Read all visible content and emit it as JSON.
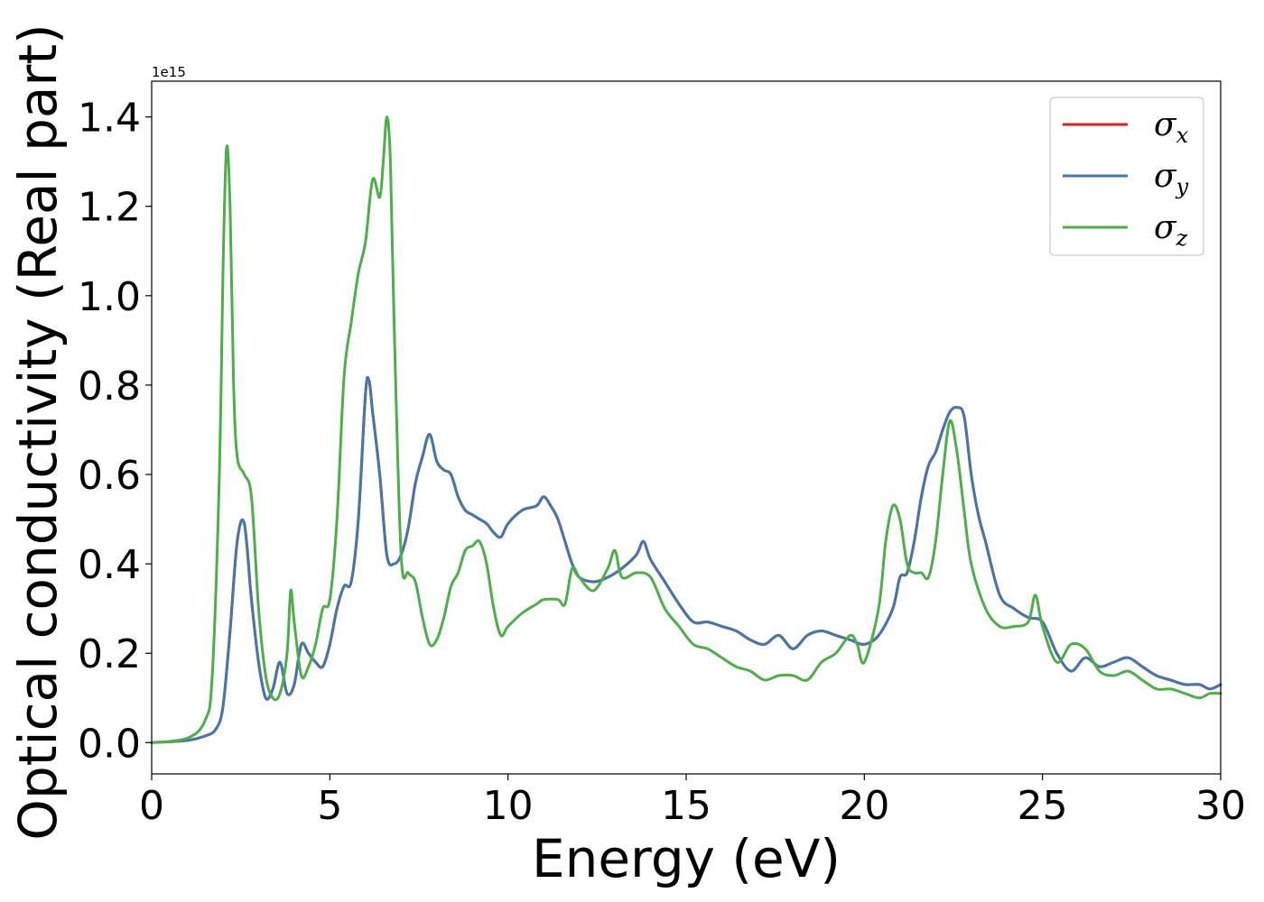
{
  "chart_data": {
    "type": "line",
    "title": "",
    "xlabel": "Energy (eV)",
    "ylabel": "Optical conductivity (Real part)",
    "y_offset_label": "1e15",
    "xlim": [
      0,
      30
    ],
    "ylim": [
      -0.07,
      1.48
    ],
    "xticks": [
      0,
      5,
      10,
      15,
      20,
      25,
      30
    ],
    "xtick_labels": [
      "0",
      "5",
      "10",
      "15",
      "20",
      "25",
      "30"
    ],
    "yticks": [
      0.0,
      0.2,
      0.4,
      0.6,
      0.8,
      1.0,
      1.2,
      1.4
    ],
    "ytick_labels": [
      "0.0",
      "0.2",
      "0.4",
      "0.6",
      "0.8",
      "1.0",
      "1.2",
      "1.4"
    ],
    "grid": false,
    "legend_position": "top-right",
    "series": [
      {
        "name": "σx",
        "legend_base": "σ",
        "legend_sub": "x",
        "color": "#e41a1c",
        "x": [
          0,
          1,
          1.5,
          1.8,
          2.0,
          2.2,
          2.4,
          2.6,
          2.8,
          3.0,
          3.2,
          3.4,
          3.6,
          3.8,
          4.0,
          4.2,
          4.4,
          4.6,
          4.8,
          5.0,
          5.2,
          5.4,
          5.6,
          5.8,
          6.0,
          6.1,
          6.2,
          6.4,
          6.6,
          6.8,
          7.0,
          7.2,
          7.4,
          7.6,
          7.8,
          8.0,
          8.2,
          8.4,
          8.6,
          8.8,
          9.0,
          9.2,
          9.4,
          9.6,
          9.8,
          10.0,
          10.4,
          10.8,
          11.0,
          11.2,
          11.4,
          11.6,
          11.8,
          12.0,
          12.4,
          12.8,
          13.2,
          13.6,
          13.8,
          14.0,
          14.4,
          14.8,
          15.2,
          15.6,
          16.0,
          16.4,
          16.8,
          17.2,
          17.6,
          18.0,
          18.4,
          18.8,
          19.2,
          19.6,
          20.0,
          20.4,
          20.8,
          21.0,
          21.2,
          21.4,
          21.6,
          21.8,
          22.0,
          22.2,
          22.4,
          22.6,
          22.8,
          23.0,
          23.2,
          23.4,
          23.8,
          24.2,
          24.6,
          25.0,
          25.4,
          25.8,
          26.2,
          26.6,
          27.0,
          27.4,
          27.8,
          28.2,
          28.6,
          29.0,
          29.4,
          29.7,
          30
        ],
        "y": [
          0.0,
          0.005,
          0.015,
          0.03,
          0.08,
          0.25,
          0.45,
          0.49,
          0.32,
          0.18,
          0.1,
          0.12,
          0.18,
          0.11,
          0.13,
          0.22,
          0.2,
          0.18,
          0.17,
          0.22,
          0.3,
          0.35,
          0.36,
          0.5,
          0.78,
          0.81,
          0.74,
          0.6,
          0.42,
          0.4,
          0.42,
          0.48,
          0.58,
          0.64,
          0.69,
          0.63,
          0.61,
          0.6,
          0.55,
          0.52,
          0.51,
          0.5,
          0.49,
          0.47,
          0.46,
          0.49,
          0.52,
          0.53,
          0.55,
          0.53,
          0.5,
          0.45,
          0.4,
          0.37,
          0.36,
          0.37,
          0.39,
          0.42,
          0.45,
          0.41,
          0.36,
          0.31,
          0.27,
          0.27,
          0.26,
          0.25,
          0.23,
          0.22,
          0.24,
          0.21,
          0.24,
          0.25,
          0.24,
          0.23,
          0.22,
          0.24,
          0.3,
          0.37,
          0.38,
          0.45,
          0.55,
          0.62,
          0.65,
          0.7,
          0.74,
          0.75,
          0.73,
          0.6,
          0.51,
          0.45,
          0.33,
          0.3,
          0.28,
          0.27,
          0.2,
          0.16,
          0.19,
          0.17,
          0.18,
          0.19,
          0.17,
          0.15,
          0.14,
          0.13,
          0.13,
          0.12,
          0.13
        ]
      },
      {
        "name": "σy",
        "legend_base": "σ",
        "legend_sub": "y",
        "color": "#4477aa",
        "x": [
          0,
          1,
          1.5,
          1.8,
          2.0,
          2.2,
          2.4,
          2.6,
          2.8,
          3.0,
          3.2,
          3.4,
          3.6,
          3.8,
          4.0,
          4.2,
          4.4,
          4.6,
          4.8,
          5.0,
          5.2,
          5.4,
          5.6,
          5.8,
          6.0,
          6.1,
          6.2,
          6.4,
          6.6,
          6.8,
          7.0,
          7.2,
          7.4,
          7.6,
          7.8,
          8.0,
          8.2,
          8.4,
          8.6,
          8.8,
          9.0,
          9.2,
          9.4,
          9.6,
          9.8,
          10.0,
          10.4,
          10.8,
          11.0,
          11.2,
          11.4,
          11.6,
          11.8,
          12.0,
          12.4,
          12.8,
          13.2,
          13.6,
          13.8,
          14.0,
          14.4,
          14.8,
          15.2,
          15.6,
          16.0,
          16.4,
          16.8,
          17.2,
          17.6,
          18.0,
          18.4,
          18.8,
          19.2,
          19.6,
          20.0,
          20.4,
          20.8,
          21.0,
          21.2,
          21.4,
          21.6,
          21.8,
          22.0,
          22.2,
          22.4,
          22.6,
          22.8,
          23.0,
          23.2,
          23.4,
          23.8,
          24.2,
          24.6,
          25.0,
          25.4,
          25.8,
          26.2,
          26.6,
          27.0,
          27.4,
          27.8,
          28.2,
          28.6,
          29.0,
          29.4,
          29.7,
          30
        ],
        "y": [
          0.0,
          0.005,
          0.015,
          0.03,
          0.08,
          0.25,
          0.45,
          0.49,
          0.32,
          0.18,
          0.1,
          0.12,
          0.18,
          0.11,
          0.13,
          0.22,
          0.2,
          0.18,
          0.17,
          0.22,
          0.3,
          0.35,
          0.36,
          0.5,
          0.78,
          0.81,
          0.74,
          0.6,
          0.42,
          0.4,
          0.42,
          0.48,
          0.58,
          0.64,
          0.69,
          0.63,
          0.61,
          0.6,
          0.55,
          0.52,
          0.51,
          0.5,
          0.49,
          0.47,
          0.46,
          0.49,
          0.52,
          0.53,
          0.55,
          0.53,
          0.5,
          0.45,
          0.4,
          0.37,
          0.36,
          0.37,
          0.39,
          0.42,
          0.45,
          0.41,
          0.36,
          0.31,
          0.27,
          0.27,
          0.26,
          0.25,
          0.23,
          0.22,
          0.24,
          0.21,
          0.24,
          0.25,
          0.24,
          0.23,
          0.22,
          0.24,
          0.3,
          0.37,
          0.38,
          0.45,
          0.55,
          0.62,
          0.65,
          0.7,
          0.74,
          0.75,
          0.73,
          0.6,
          0.51,
          0.45,
          0.33,
          0.3,
          0.28,
          0.27,
          0.2,
          0.16,
          0.19,
          0.17,
          0.18,
          0.19,
          0.17,
          0.15,
          0.14,
          0.13,
          0.13,
          0.12,
          0.13
        ]
      },
      {
        "name": "σz",
        "legend_base": "σ",
        "legend_sub": "z",
        "color": "#4daf4a",
        "x": [
          0,
          1,
          1.5,
          1.7,
          1.9,
          2.0,
          2.1,
          2.2,
          2.3,
          2.4,
          2.6,
          2.8,
          3.0,
          3.2,
          3.4,
          3.6,
          3.8,
          3.9,
          4.0,
          4.2,
          4.4,
          4.6,
          4.8,
          5.0,
          5.2,
          5.4,
          5.6,
          5.8,
          6.0,
          6.2,
          6.4,
          6.5,
          6.6,
          6.7,
          6.8,
          7.0,
          7.2,
          7.4,
          7.6,
          7.8,
          8.0,
          8.2,
          8.4,
          8.6,
          8.8,
          9.0,
          9.2,
          9.4,
          9.6,
          9.8,
          10.0,
          10.4,
          10.8,
          11.0,
          11.4,
          11.6,
          11.8,
          12.0,
          12.4,
          12.8,
          13.0,
          13.2,
          13.6,
          14.0,
          14.4,
          14.8,
          15.2,
          15.6,
          16.0,
          16.4,
          16.8,
          17.2,
          17.6,
          18.0,
          18.4,
          18.8,
          19.2,
          19.6,
          19.8,
          20.0,
          20.4,
          20.6,
          20.8,
          21.0,
          21.2,
          21.4,
          21.6,
          21.8,
          22.0,
          22.2,
          22.4,
          22.6,
          22.8,
          23.0,
          23.4,
          23.8,
          24.2,
          24.6,
          24.8,
          25.0,
          25.4,
          25.8,
          26.2,
          26.6,
          27.0,
          27.4,
          27.8,
          28.2,
          28.6,
          29.0,
          29.4,
          29.7,
          30
        ],
        "y": [
          0.0,
          0.01,
          0.05,
          0.15,
          0.6,
          1.05,
          1.33,
          1.2,
          0.8,
          0.64,
          0.6,
          0.55,
          0.3,
          0.15,
          0.1,
          0.11,
          0.2,
          0.34,
          0.27,
          0.15,
          0.17,
          0.22,
          0.3,
          0.32,
          0.5,
          0.82,
          0.94,
          1.05,
          1.12,
          1.26,
          1.22,
          1.3,
          1.4,
          1.3,
          0.95,
          0.42,
          0.38,
          0.36,
          0.28,
          0.22,
          0.23,
          0.28,
          0.35,
          0.38,
          0.43,
          0.44,
          0.45,
          0.4,
          0.3,
          0.24,
          0.26,
          0.29,
          0.31,
          0.32,
          0.32,
          0.31,
          0.39,
          0.37,
          0.34,
          0.39,
          0.43,
          0.37,
          0.38,
          0.37,
          0.3,
          0.26,
          0.22,
          0.21,
          0.19,
          0.17,
          0.16,
          0.14,
          0.15,
          0.15,
          0.14,
          0.18,
          0.2,
          0.24,
          0.22,
          0.18,
          0.3,
          0.45,
          0.53,
          0.5,
          0.4,
          0.38,
          0.38,
          0.37,
          0.45,
          0.6,
          0.72,
          0.65,
          0.52,
          0.4,
          0.3,
          0.26,
          0.26,
          0.27,
          0.33,
          0.26,
          0.18,
          0.22,
          0.21,
          0.16,
          0.15,
          0.16,
          0.14,
          0.12,
          0.12,
          0.11,
          0.1,
          0.11,
          0.11
        ]
      }
    ]
  }
}
